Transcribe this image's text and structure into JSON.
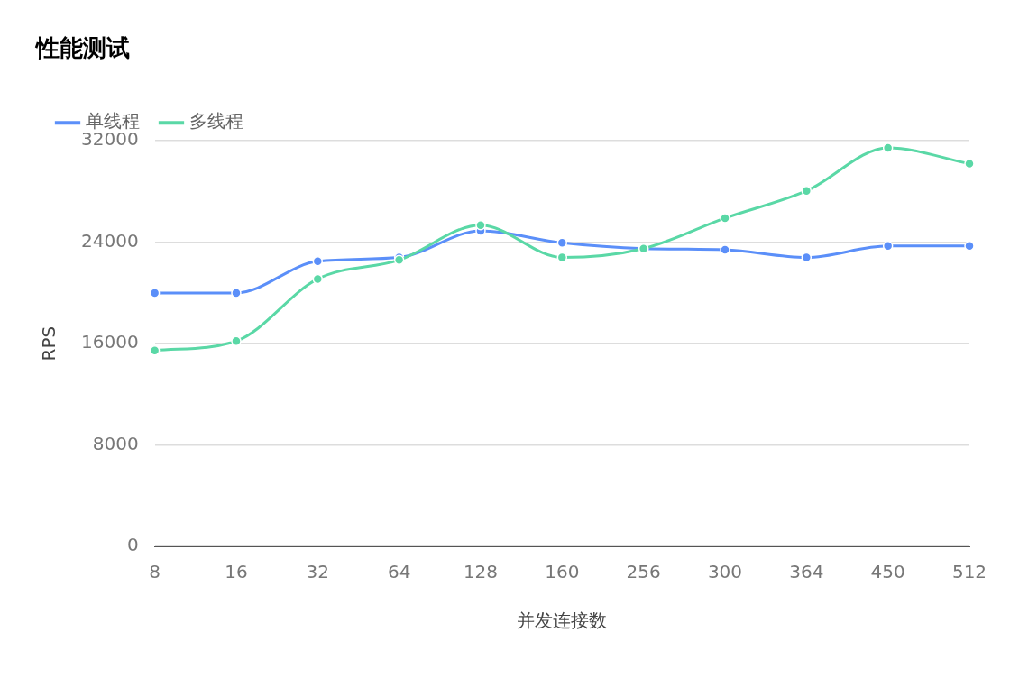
{
  "chart_data": {
    "type": "line",
    "title": "性能测试",
    "xlabel": "并发连接数",
    "ylabel": "RPS",
    "categories": [
      "8",
      "16",
      "32",
      "64",
      "128",
      "160",
      "256",
      "300",
      "364",
      "450",
      "512"
    ],
    "series": [
      {
        "name": "单线程",
        "color": "#5b8ff9",
        "values": [
          20000,
          20000,
          22500,
          22800,
          24900,
          23950,
          23500,
          23400,
          22800,
          23700,
          23700
        ]
      },
      {
        "name": "多线程",
        "color": "#5ad8a6",
        "values": [
          15450,
          16200,
          21100,
          22600,
          25350,
          22800,
          23500,
          25900,
          28050,
          31450,
          30200
        ]
      }
    ],
    "ylim": [
      0,
      32000
    ],
    "yticks": [
      0,
      8000,
      16000,
      24000,
      32000
    ],
    "grid": "y",
    "legend": "top left",
    "marker": "circle",
    "line_style": "solid"
  }
}
